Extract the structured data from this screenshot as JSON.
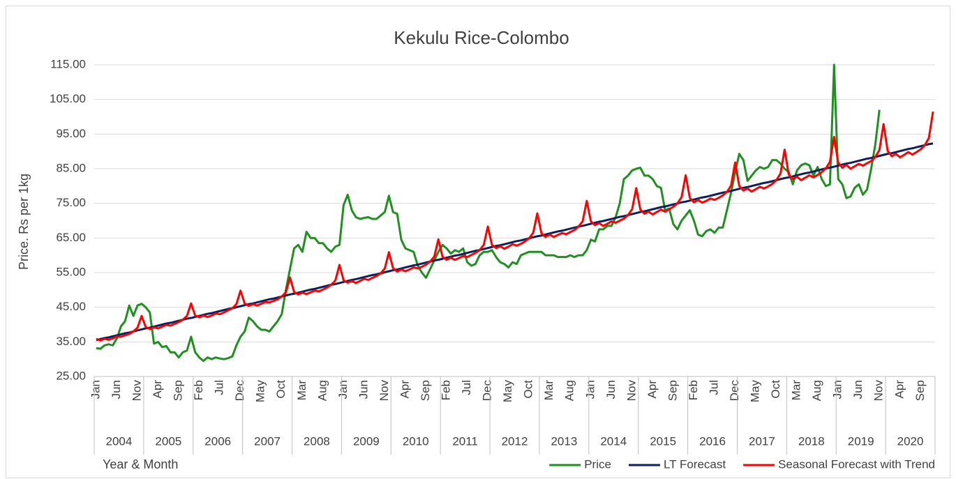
{
  "chart_data": {
    "type": "line",
    "title": "Kekulu Rice-Colombo",
    "y_label": "Price. Rs per 1kg",
    "x_label": "Year & Month",
    "legend": "bottom-right",
    "grid": true,
    "ylim": [
      25,
      115
    ],
    "yticks": [
      {
        "value": 25,
        "label": "25.00"
      },
      {
        "value": 35,
        "label": "35.00"
      },
      {
        "value": 45,
        "label": "45.00"
      },
      {
        "value": 55,
        "label": "55.00"
      },
      {
        "value": 65,
        "label": "65.00"
      },
      {
        "value": 75,
        "label": "75.00"
      },
      {
        "value": 85,
        "label": "85.00"
      },
      {
        "value": 95,
        "label": "95.00"
      },
      {
        "value": 105,
        "label": "105.00"
      },
      {
        "value": 115,
        "label": "115.00"
      }
    ],
    "years": [
      "2004",
      "2005",
      "2006",
      "2007",
      "2008",
      "2009",
      "2010",
      "2011",
      "2012",
      "2013",
      "2014",
      "2015",
      "2016",
      "2017",
      "2018",
      "2019",
      "2020"
    ],
    "categories": [
      "Jan",
      null,
      null,
      null,
      null,
      "Jun",
      null,
      null,
      null,
      null,
      "Nov",
      null,
      null,
      null,
      null,
      "Apr",
      null,
      null,
      null,
      null,
      "Sep",
      null,
      null,
      null,
      null,
      "Feb",
      null,
      null,
      null,
      null,
      "Jul",
      null,
      null,
      null,
      null,
      "Dec",
      null,
      null,
      null,
      null,
      "May",
      null,
      null,
      null,
      null,
      "Oct",
      null,
      null,
      null,
      null,
      "Mar",
      null,
      null,
      null,
      null,
      "Aug",
      null,
      null,
      null,
      null,
      "Jan",
      null,
      null,
      null,
      null,
      "Jun",
      null,
      null,
      null,
      null,
      "Nov",
      null,
      null,
      null,
      null,
      "Apr",
      null,
      null,
      null,
      null,
      "Sep",
      null,
      null,
      null,
      null,
      "Feb",
      null,
      null,
      null,
      null,
      "Jul",
      null,
      null,
      null,
      null,
      "Dec",
      null,
      null,
      null,
      null,
      "May",
      null,
      null,
      null,
      null,
      "Oct",
      null,
      null,
      null,
      null,
      "Mar",
      null,
      null,
      null,
      null,
      "Aug",
      null,
      null,
      null,
      null,
      "Jan",
      null,
      null,
      null,
      null,
      "Jun",
      null,
      null,
      null,
      null,
      "Nov",
      null,
      null,
      null,
      null,
      "Apr",
      null,
      null,
      null,
      null,
      "Sep",
      null,
      null,
      null,
      null,
      "Feb",
      null,
      null,
      null,
      null,
      "Jul",
      null,
      null,
      null,
      null,
      "Dec",
      null,
      null,
      null,
      null,
      "May",
      null,
      null,
      null,
      null,
      "Oct",
      null,
      null,
      null,
      null,
      "Mar",
      null,
      null,
      null,
      null,
      "Aug",
      null,
      null,
      null,
      null,
      "Jan",
      null,
      null,
      null,
      null,
      "Jun",
      null,
      null,
      null,
      null,
      "Nov",
      null,
      null,
      null,
      null,
      "Apr",
      null,
      null,
      null,
      null,
      "Sep",
      null,
      null,
      null
    ],
    "series": [
      {
        "name": "Price",
        "color": "#1f8f1f",
        "values": [
          33.2,
          33.0,
          34.0,
          34.3,
          34.0,
          36.0,
          39.5,
          41.0,
          45.5,
          42.5,
          45.5,
          46.0,
          45.0,
          43.5,
          34.5,
          35.0,
          33.5,
          33.8,
          32.0,
          32.0,
          30.5,
          32.0,
          32.5,
          36.5,
          32.0,
          30.5,
          29.5,
          30.5,
          30.0,
          30.5,
          30.2,
          30.0,
          30.3,
          30.8,
          34.0,
          36.5,
          38.0,
          42.0,
          41.0,
          39.5,
          38.5,
          38.5,
          38.0,
          39.5,
          41.0,
          43.0,
          50.0,
          56.0,
          62.0,
          63.0,
          61.0,
          66.8,
          65.0,
          65.0,
          63.5,
          63.5,
          62.0,
          61.0,
          62.5,
          63.0,
          74.5,
          77.5,
          73.0,
          71.0,
          70.5,
          70.8,
          71.0,
          70.5,
          70.5,
          71.5,
          72.5,
          77.2,
          72.5,
          72.0,
          64.5,
          62.0,
          61.5,
          61.0,
          57.0,
          55.0,
          53.5,
          56.0,
          58.5,
          61.0,
          63.0,
          62.0,
          60.5,
          61.5,
          61.0,
          62.0,
          58.0,
          57.0,
          57.5,
          60.0,
          61.0,
          61.0,
          61.5,
          59.5,
          58.0,
          57.5,
          56.5,
          58.0,
          57.5,
          60.0,
          60.5,
          61.0,
          61.0,
          61.0,
          61.0,
          60.0,
          60.0,
          60.0,
          59.5,
          59.5,
          59.5,
          60.0,
          59.5,
          60.0,
          60.0,
          61.5,
          64.5,
          64.0,
          67.5,
          67.5,
          68.5,
          68.5,
          71.0,
          75.0,
          82.0,
          83.0,
          84.5,
          85.0,
          85.3,
          83.0,
          83.0,
          82.0,
          80.0,
          79.5,
          73.0,
          73.5,
          69.0,
          67.5,
          70.0,
          71.5,
          73.0,
          70.0,
          66.0,
          65.5,
          67.0,
          67.5,
          66.5,
          68.0,
          68.0,
          73.0,
          78.0,
          84.0,
          89.3,
          87.5,
          81.5,
          83.0,
          84.5,
          85.5,
          85.0,
          85.5,
          87.5,
          87.5,
          86.5,
          85.0,
          84.0,
          80.5,
          84.5,
          86.0,
          86.5,
          86.0,
          83.0,
          85.5,
          82.0,
          80.0,
          80.5,
          115.0,
          82.0,
          80.5,
          76.5,
          77.0,
          79.5,
          80.5,
          77.5,
          79.0,
          85.0,
          92.0,
          102.0,
          null,
          null,
          null,
          null,
          null,
          null,
          null,
          null,
          null,
          null,
          null,
          null,
          null
        ]
      },
      {
        "name": "LT Forecast",
        "color": "#0c1f5e",
        "values": [
          35.5,
          35.8,
          36.1,
          36.3,
          36.6,
          36.9,
          37.2,
          37.5,
          37.7,
          38.0,
          38.3,
          38.6,
          38.9,
          39.1,
          39.4,
          39.7,
          40.0,
          40.3,
          40.5,
          40.8,
          41.1,
          41.4,
          41.7,
          41.9,
          42.2,
          42.5,
          42.8,
          43.1,
          43.3,
          43.6,
          43.9,
          44.2,
          44.5,
          44.7,
          45.0,
          45.3,
          45.6,
          45.9,
          46.1,
          46.4,
          46.7,
          47.0,
          47.3,
          47.5,
          47.8,
          48.1,
          48.4,
          48.7,
          48.9,
          49.2,
          49.5,
          49.8,
          50.1,
          50.3,
          50.6,
          50.9,
          51.2,
          51.5,
          51.7,
          52.0,
          52.3,
          52.6,
          52.9,
          53.1,
          53.4,
          53.7,
          54.0,
          54.3,
          54.5,
          54.8,
          55.1,
          55.4,
          55.7,
          55.9,
          56.2,
          56.5,
          56.8,
          57.1,
          57.3,
          57.6,
          57.9,
          58.2,
          58.5,
          58.7,
          59.0,
          59.3,
          59.6,
          59.9,
          60.1,
          60.4,
          60.7,
          61.0,
          61.3,
          61.5,
          61.8,
          62.1,
          62.4,
          62.7,
          62.9,
          63.2,
          63.5,
          63.8,
          64.1,
          64.3,
          64.6,
          64.9,
          65.2,
          65.5,
          65.7,
          66.0,
          66.3,
          66.6,
          66.9,
          67.1,
          67.4,
          67.7,
          68.0,
          68.3,
          68.5,
          68.8,
          69.1,
          69.4,
          69.7,
          69.9,
          70.2,
          70.5,
          70.8,
          71.1,
          71.3,
          71.6,
          71.9,
          72.2,
          72.5,
          72.7,
          73.0,
          73.3,
          73.6,
          73.9,
          74.1,
          74.4,
          74.7,
          75.0,
          75.3,
          75.5,
          75.8,
          76.1,
          76.4,
          76.7,
          76.9,
          77.2,
          77.5,
          77.8,
          78.1,
          78.3,
          78.6,
          78.9,
          79.2,
          79.5,
          79.7,
          80.0,
          80.3,
          80.6,
          80.9,
          81.1,
          81.4,
          81.7,
          82.0,
          82.3,
          82.5,
          82.8,
          83.1,
          83.4,
          83.7,
          83.9,
          84.2,
          84.5,
          84.8,
          85.1,
          85.3,
          85.6,
          85.9,
          86.2,
          86.5,
          86.7,
          87.0,
          87.3,
          87.6,
          87.9,
          88.1,
          88.4,
          88.7,
          89.0,
          89.3,
          89.5,
          89.8,
          90.1,
          90.4,
          90.7,
          90.9,
          91.2,
          91.5,
          91.8,
          92.1,
          92.3
        ]
      },
      {
        "name": "Seasonal Forecast with Trend",
        "color": "#ff0000",
        "values": [
          35.9,
          35.4,
          35.9,
          35.6,
          36.0,
          36.5,
          36.5,
          36.9,
          37.3,
          38.0,
          39.1,
          42.5,
          39.3,
          38.7,
          39.2,
          38.9,
          39.4,
          39.9,
          39.7,
          40.2,
          40.7,
          41.4,
          42.5,
          46.1,
          42.6,
          42.1,
          42.6,
          42.2,
          42.6,
          43.2,
          43.0,
          43.5,
          44.1,
          44.7,
          45.9,
          49.8,
          46.1,
          45.4,
          45.9,
          45.5,
          46.0,
          46.5,
          46.4,
          46.8,
          47.3,
          48.1,
          49.3,
          53.6,
          49.4,
          48.7,
          49.2,
          48.8,
          49.3,
          49.8,
          49.6,
          50.1,
          50.7,
          51.5,
          52.7,
          57.2,
          52.8,
          52.1,
          52.6,
          52.0,
          52.6,
          53.2,
          52.9,
          53.5,
          54.0,
          54.8,
          56.2,
          60.9,
          56.3,
          55.3,
          55.9,
          55.4,
          55.9,
          56.5,
          56.2,
          56.7,
          57.3,
          58.2,
          59.6,
          64.6,
          59.6,
          58.7,
          59.3,
          58.7,
          59.2,
          59.8,
          59.5,
          60.1,
          60.7,
          61.5,
          63.0,
          68.3,
          63.0,
          62.1,
          62.6,
          61.9,
          62.5,
          63.2,
          62.8,
          63.3,
          64.0,
          64.9,
          66.5,
          72.1,
          66.4,
          65.3,
          66.0,
          65.3,
          65.9,
          66.4,
          66.1,
          66.7,
          67.3,
          68.3,
          69.8,
          75.7,
          69.8,
          68.7,
          69.3,
          68.5,
          69.1,
          69.8,
          69.4,
          70.0,
          70.6,
          71.6,
          73.3,
          79.4,
          73.2,
          72.0,
          72.6,
          71.8,
          72.5,
          73.2,
          72.6,
          73.3,
          74.0,
          75.0,
          76.8,
          83.1,
          76.6,
          75.3,
          76.0,
          75.2,
          75.7,
          76.4,
          76.0,
          76.6,
          77.3,
          78.3,
          80.1,
          86.8,
          80.0,
          78.7,
          79.3,
          78.4,
          79.1,
          79.8,
          79.3,
          79.9,
          80.6,
          81.7,
          83.6,
          90.5,
          83.3,
          82.0,
          82.7,
          81.7,
          82.4,
          83.1,
          82.5,
          83.2,
          84.0,
          85.1,
          87.0,
          94.2,
          86.8,
          85.3,
          86.1,
          85.0,
          85.7,
          86.4,
          85.9,
          86.6,
          87.2,
          88.4,
          90.4,
          97.9,
          90.2,
          88.6,
          89.3,
          88.3,
          89.0,
          89.8,
          89.1,
          89.8,
          90.6,
          91.8,
          93.9,
          101.5
        ]
      }
    ]
  }
}
